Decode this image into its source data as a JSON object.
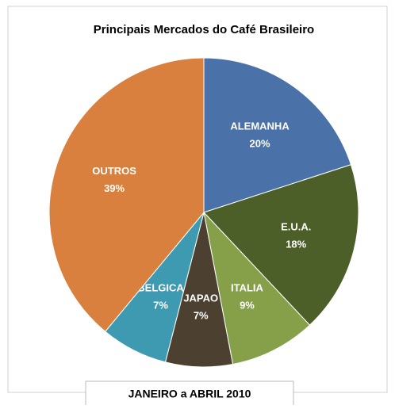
{
  "chart_data": {
    "type": "pie",
    "title": "Principais Mercados do Café Brasileiro",
    "footer": "JANEIRO a ABRIL  2010",
    "categories": [
      "ALEMANHA",
      "E.U.A.",
      "ITALIA",
      "JAPAO",
      "BELGICA",
      "OUTROS"
    ],
    "values": [
      20,
      18,
      9,
      7,
      7,
      39
    ],
    "value_labels": [
      "20%",
      "18%",
      "9%",
      "7%",
      "7%",
      "39%"
    ],
    "colors": [
      "#4a72a8",
      "#4d5f28",
      "#86a04a",
      "#4c4131",
      "#3d9ab0",
      "#d9803f"
    ]
  }
}
